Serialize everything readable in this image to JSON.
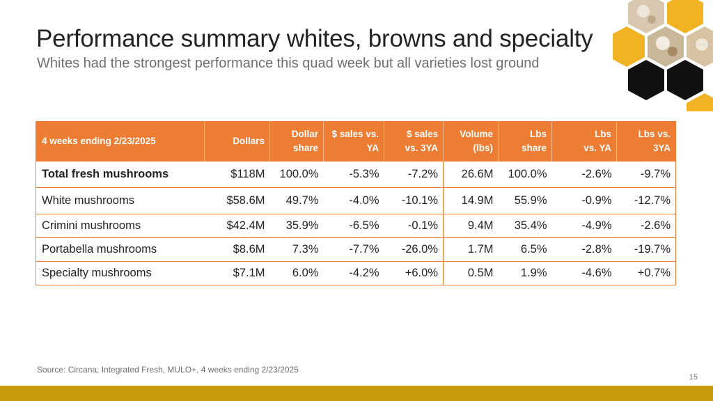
{
  "header": {
    "title": "Performance summary whites, browns and specialty",
    "subtitle": "Whites had the strongest performance this quad week but all varieties lost ground"
  },
  "decoration": {
    "icon": "mushroom-hexagon-collage",
    "colors": {
      "honey": "#f0b323",
      "black": "#111111",
      "photo": "#d8c8b0"
    }
  },
  "table": {
    "headers": [
      [
        "4 weeks ending 2/23/2025"
      ],
      [
        "Dollars"
      ],
      [
        "Dollar",
        "share"
      ],
      [
        "$ sales vs.",
        "YA"
      ],
      [
        "$ sales",
        "vs. 3YA"
      ],
      [
        "Volume",
        "(lbs)"
      ],
      [
        "Lbs",
        "share"
      ],
      [
        "Lbs",
        "vs. YA"
      ],
      [
        "Lbs vs.",
        "3YA"
      ]
    ],
    "rows": [
      [
        "Total fresh mushrooms",
        "$118M",
        "100.0%",
        "-5.3%",
        "-7.2%",
        "26.6M",
        "100.0%",
        "-2.6%",
        "-9.7%"
      ],
      [
        "White mushrooms",
        "$58.6M",
        "49.7%",
        "-4.0%",
        "-10.1%",
        "14.9M",
        "55.9%",
        "-0.9%",
        "-12.7%"
      ],
      [
        "Crimini mushrooms",
        "$42.4M",
        "35.9%",
        "-6.5%",
        "-0.1%",
        "9.4M",
        "35.4%",
        "-4.9%",
        "-2.6%"
      ],
      [
        "Portabella mushrooms",
        "$8.6M",
        "7.3%",
        "-7.7%",
        "-26.0%",
        "1.7M",
        "6.5%",
        "-2.8%",
        "-19.7%"
      ],
      [
        "Specialty mushrooms",
        "$7.1M",
        "6.0%",
        "-4.2%",
        "+6.0%",
        "0.5M",
        "1.9%",
        "-4.6%",
        "+0.7%"
      ]
    ]
  },
  "footer": {
    "source": "Source: Circana, Integrated Fresh, MULO+, 4 weeks ending 2/23/2025",
    "page_number": "15"
  },
  "theme": {
    "accent": "#ee7d34",
    "bar": "#c89b0e"
  }
}
